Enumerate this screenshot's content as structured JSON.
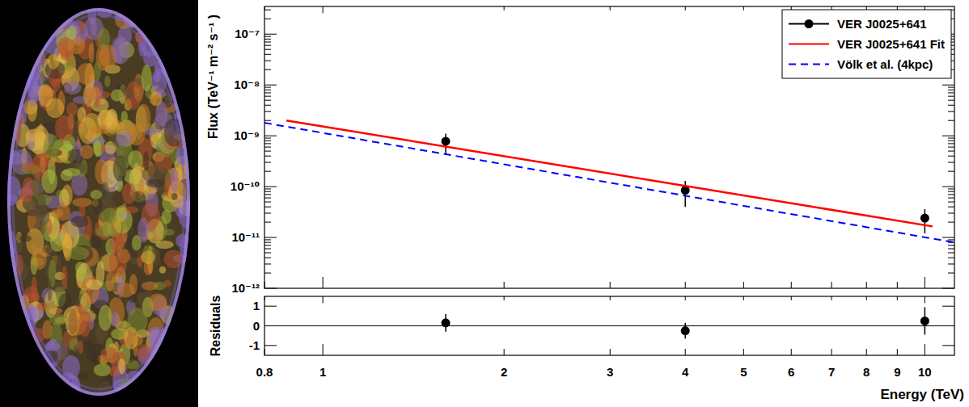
{
  "chart_data": [
    {
      "type": "scatter",
      "ylabel": "Flux (TeV⁻¹ m⁻² s⁻¹ )",
      "log": true,
      "xlim": [
        0.8,
        11.2
      ],
      "ylim": [
        1e-12,
        3.5e-07
      ],
      "xticks": [
        0.8,
        1,
        2,
        3,
        4,
        5,
        6,
        7,
        8,
        9,
        10
      ],
      "yticks": [
        {
          "value": 1e-12,
          "label": "10⁻¹²"
        },
        {
          "value": 1e-11,
          "label": "10⁻¹¹"
        },
        {
          "value": 1e-10,
          "label": "10⁻¹⁰"
        },
        {
          "value": 1e-09,
          "label": "10⁻⁹"
        },
        {
          "value": 1e-08,
          "label": "10⁻⁸"
        },
        {
          "value": 1e-07,
          "label": "10⁻⁷"
        }
      ],
      "tick_labels": "y",
      "grid": false,
      "legend": "top-right",
      "series": [
        {
          "name": "VER J0025+641",
          "type": "scatter",
          "color": "#000000",
          "marker": "circle",
          "x": [
            1.6,
            4,
            10
          ],
          "values": [
            7.8e-10,
            8.5e-11,
            2.4e-11
          ],
          "error_minus": [
            3.3e-10,
            4.5e-11,
            1.2e-11
          ],
          "error_plus": [
            3.2e-10,
            4.5e-11,
            1.2e-11
          ]
        },
        {
          "name": "VER J0025+641 Fit",
          "type": "line",
          "color": "#ff0000",
          "line_style": "solid",
          "x": [
            0.87,
            10.3
          ],
          "values": [
            2e-09,
            1.65e-11
          ]
        },
        {
          "name": "Völk et al. (4kpc)",
          "type": "line",
          "color": "#0000ff",
          "line_style": "dashed",
          "x": [
            0.8,
            11.2
          ],
          "values": [
            1.8e-09,
            8e-12
          ]
        }
      ]
    },
    {
      "type": "scatter",
      "xlabel": "Energy (TeV)",
      "ylabel": "Residuals",
      "log": "x",
      "xlim": [
        0.8,
        11.2
      ],
      "ylim": [
        -1.5,
        1.5
      ],
      "xticks": [
        0.8,
        1,
        2,
        3,
        4,
        5,
        6,
        7,
        8,
        9,
        10
      ],
      "yticks": [
        -1,
        0,
        1
      ],
      "grid": false,
      "series": [
        {
          "type": "scatter",
          "color": "#000000",
          "marker": "circle",
          "x": [
            1.6,
            4,
            10
          ],
          "values": [
            0.15,
            -0.25,
            0.25
          ],
          "errors": [
            0.45,
            0.4,
            0.7
          ]
        }
      ]
    }
  ]
}
